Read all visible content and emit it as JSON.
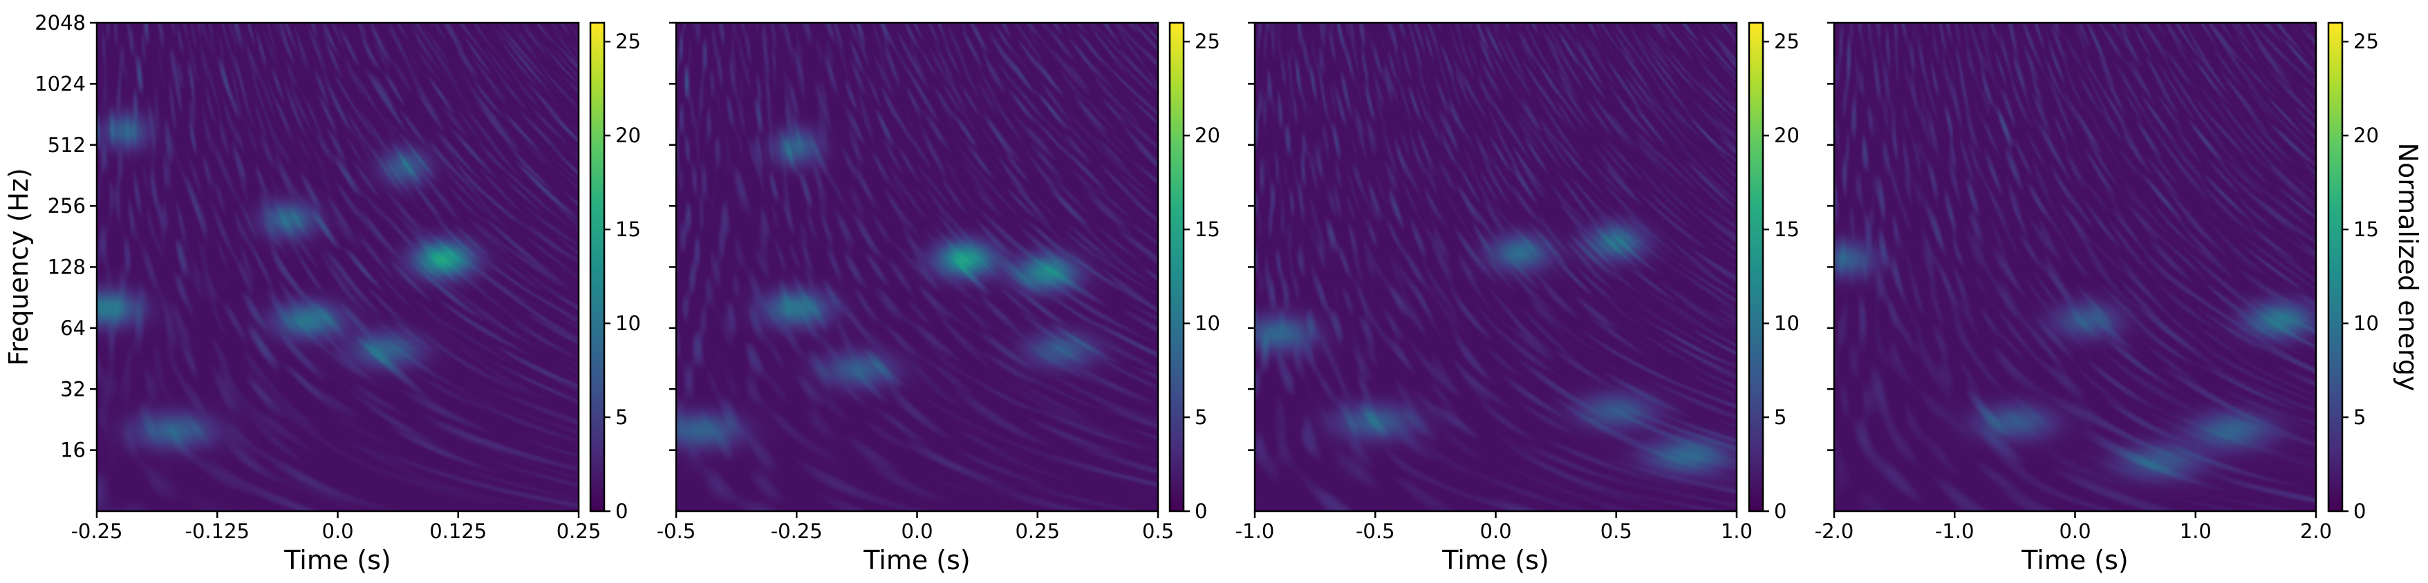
{
  "chart_data": [
    {
      "type": "heatmap",
      "xlabel": "Time (s)",
      "ylabel": "Frequency (Hz)",
      "xlim": [
        -0.25,
        0.25
      ],
      "xticks": [
        "-0.25",
        "-0.125",
        "0.0",
        "0.125",
        "0.25"
      ],
      "ylim": [
        8,
        2048
      ],
      "yscale": "log2",
      "yticks": [
        "16",
        "32",
        "64",
        "128",
        "256",
        "512",
        "1024",
        "2048"
      ],
      "colorbar": {
        "ticks": [
          "0",
          "5",
          "10",
          "15",
          "20",
          "25"
        ],
        "range": [
          0,
          26
        ],
        "colormap": "viridis",
        "label": ""
      },
      "blobs": [
        {
          "t": -0.24,
          "f": 80,
          "e": 9.5
        },
        {
          "t": -0.03,
          "f": 70,
          "e": 9
        },
        {
          "t": 0.05,
          "f": 50,
          "e": 7
        },
        {
          "t": 0.11,
          "f": 140,
          "e": 13.5
        },
        {
          "t": -0.17,
          "f": 20,
          "e": 7
        },
        {
          "t": -0.05,
          "f": 220,
          "e": 7.5
        },
        {
          "t": 0.07,
          "f": 400,
          "e": 6.5
        },
        {
          "t": -0.22,
          "f": 600,
          "e": 7
        }
      ]
    },
    {
      "type": "heatmap",
      "xlabel": "Time (s)",
      "ylabel": "",
      "xlim": [
        -0.5,
        0.5
      ],
      "xticks": [
        "-0.5",
        "-0.25",
        "0.0",
        "0.25",
        "0.5"
      ],
      "ylim": [
        8,
        2048
      ],
      "yscale": "log2",
      "yticks": [],
      "colorbar": {
        "ticks": [
          "0",
          "5",
          "10",
          "15",
          "20",
          "25"
        ],
        "range": [
          0,
          26
        ],
        "colormap": "viridis",
        "label": ""
      },
      "blobs": [
        {
          "t": -0.25,
          "f": 80,
          "e": 9
        },
        {
          "t": 0.1,
          "f": 140,
          "e": 13
        },
        {
          "t": 0.27,
          "f": 120,
          "e": 11
        },
        {
          "t": -0.12,
          "f": 40,
          "e": 6.5
        },
        {
          "t": -0.45,
          "f": 20,
          "e": 7
        },
        {
          "t": 0.3,
          "f": 50,
          "e": 6
        },
        {
          "t": -0.25,
          "f": 500,
          "e": 7
        }
      ]
    },
    {
      "type": "heatmap",
      "xlabel": "Time (s)",
      "ylabel": "",
      "xlim": [
        -1.0,
        1.0
      ],
      "xticks": [
        "-1.0",
        "-0.5",
        "0.0",
        "0.5",
        "1.0"
      ],
      "ylim": [
        8,
        2048
      ],
      "yscale": "log2",
      "yticks": [],
      "colorbar": {
        "ticks": [
          "0",
          "5",
          "10",
          "15",
          "20",
          "25"
        ],
        "range": [
          0,
          26
        ],
        "colormap": "viridis",
        "label": ""
      },
      "blobs": [
        {
          "t": -0.9,
          "f": 60,
          "e": 7.5
        },
        {
          "t": 0.1,
          "f": 150,
          "e": 8
        },
        {
          "t": 0.5,
          "f": 170,
          "e": 8
        },
        {
          "t": -0.5,
          "f": 22,
          "e": 6.5
        },
        {
          "t": 0.8,
          "f": 15,
          "e": 7.5
        },
        {
          "t": 0.5,
          "f": 25,
          "e": 6
        }
      ]
    },
    {
      "type": "heatmap",
      "xlabel": "Time (s)",
      "ylabel": "",
      "xlim": [
        -2.0,
        2.0
      ],
      "xticks": [
        "-2.0",
        "-1.0",
        "0.0",
        "1.0",
        "2.0"
      ],
      "ylim": [
        8,
        2048
      ],
      "yscale": "log2",
      "yticks": [],
      "colorbar": {
        "ticks": [
          "0",
          "5",
          "10",
          "15",
          "20",
          "25"
        ],
        "range": [
          0,
          26
        ],
        "colormap": "viridis",
        "label": "Normalized energy"
      },
      "blobs": [
        {
          "t": -1.9,
          "f": 140,
          "e": 6.5
        },
        {
          "t": 0.1,
          "f": 70,
          "e": 6
        },
        {
          "t": 1.7,
          "f": 70,
          "e": 9
        },
        {
          "t": 1.3,
          "f": 20,
          "e": 7
        },
        {
          "t": -0.5,
          "f": 22,
          "e": 6
        },
        {
          "t": 0.7,
          "f": 14,
          "e": 6
        }
      ]
    }
  ]
}
